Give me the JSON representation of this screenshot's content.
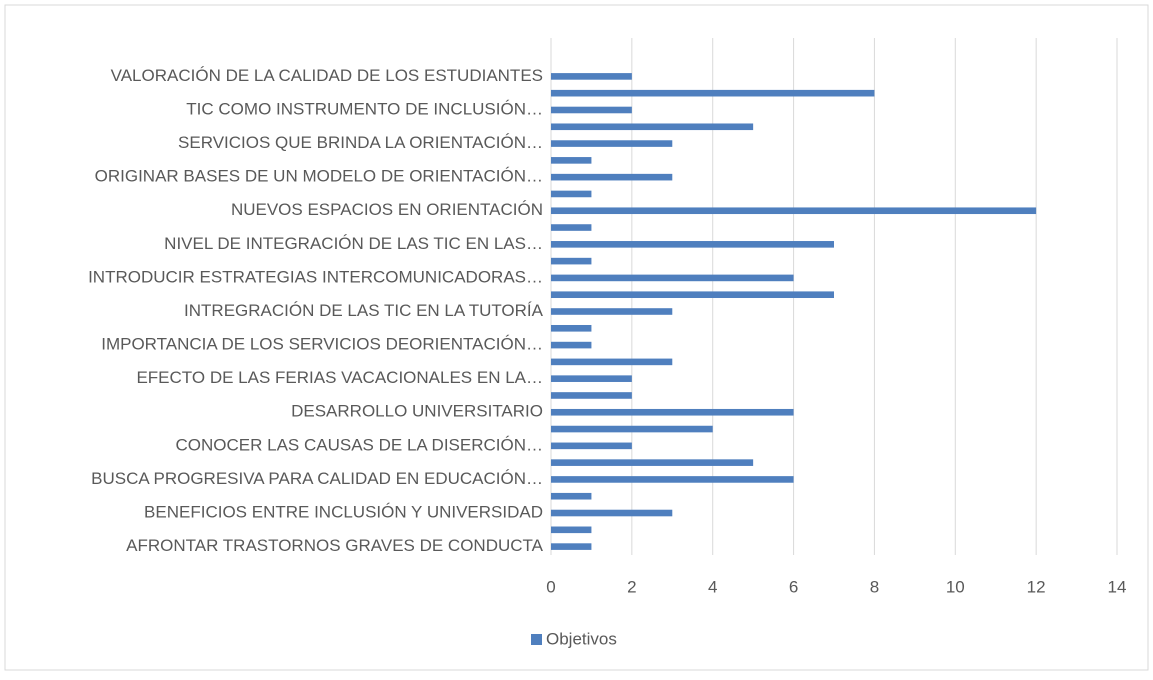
{
  "chart_data": {
    "type": "bar",
    "orientation": "horizontal",
    "categories": [
      "AFRONTAR TRASTORNOS GRAVES DE CONDUCTA",
      null,
      "BENEFICIOS ENTRE INCLUSIÓN Y UNIVERSIDAD",
      null,
      "BUSCA PROGRESIVA PARA CALIDAD EN EDUCACIÓN…",
      null,
      "CONOCER LAS CAUSAS DE LA DISERCIÓN…",
      null,
      "DESARROLLO UNIVERSITARIO",
      null,
      "EFECTO DE LAS FERIAS VACACIONALES EN LA…",
      null,
      "IMPORTANCIA DE LOS SERVICIOS DEORIENTACIÓN…",
      null,
      "INTREGRACIÓN DE LAS TIC EN LA TUTORÍA",
      null,
      "INTRODUCIR ESTRATEGIAS INTERCOMUNICADORAS…",
      null,
      "NIVEL DE INTEGRACIÓN DE LAS TIC EN LAS…",
      null,
      "NUEVOS ESPACIOS EN ORIENTACIÓN",
      null,
      "ORIGINAR BASES DE UN MODELO DE ORIENTACIÓN…",
      null,
      "SERVICIOS QUE  BRINDA LA ORIENTACIÓN…",
      null,
      "TIC COMO INSTRUMENTO DE INCLUSIÓN…",
      null,
      "VALORACIÓN DE LA CALIDAD DE LOS ESTUDIANTES"
    ],
    "series": [
      {
        "name": "Objetivos",
        "color": "#4f7fbe",
        "values": [
          1,
          1,
          3,
          1,
          6,
          5,
          2,
          4,
          6,
          2,
          2,
          3,
          1,
          1,
          3,
          7,
          6,
          1,
          7,
          1,
          12,
          1,
          3,
          1,
          3,
          5,
          2,
          8,
          2
        ]
      }
    ],
    "xlim": [
      0,
      14
    ],
    "xticks": [
      0,
      2,
      4,
      6,
      8,
      10,
      12,
      14
    ],
    "grid": true,
    "legend": "bottom"
  }
}
